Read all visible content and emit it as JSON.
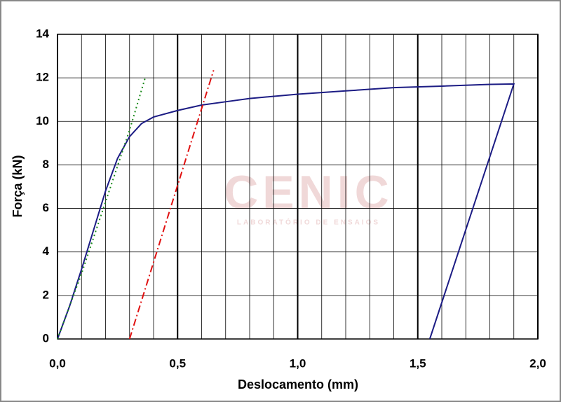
{
  "chart_data": {
    "type": "line",
    "xlabel": "Deslocamento (mm)",
    "ylabel": "Força (kN)",
    "watermark": {
      "logo": "CENIC",
      "subtitle": "LABORATÓRIO DE ENSAIOS"
    },
    "xlim": [
      0,
      2.0
    ],
    "ylim": [
      0,
      14
    ],
    "xticks": [
      {
        "value": 0,
        "label": "0,0"
      },
      {
        "value": 0.5,
        "label": "0,5"
      },
      {
        "value": 1.0,
        "label": "1,0"
      },
      {
        "value": 1.5,
        "label": "1,5"
      },
      {
        "value": 2.0,
        "label": "2,0"
      }
    ],
    "xminor": [
      0.1,
      0.2,
      0.3,
      0.4,
      0.6,
      0.7,
      0.8,
      0.9,
      1.1,
      1.2,
      1.3,
      1.4,
      1.6,
      1.7,
      1.8,
      1.9
    ],
    "yticks": [
      0,
      2,
      4,
      6,
      8,
      10,
      12,
      14
    ],
    "grid": true,
    "series": [
      {
        "color": "#1c1c84",
        "style": "solid",
        "x": [
          0,
          0.05,
          0.1,
          0.15,
          0.2,
          0.25,
          0.3,
          0.35,
          0.4,
          0.5,
          0.6,
          0.7,
          0.8,
          1.0,
          1.2,
          1.4,
          1.6,
          1.8,
          1.9,
          1.55
        ],
        "values": [
          0,
          1.5,
          3.2,
          5.0,
          6.8,
          8.3,
          9.3,
          9.9,
          10.2,
          10.5,
          10.75,
          10.9,
          11.05,
          11.25,
          11.4,
          11.55,
          11.62,
          11.7,
          11.72,
          0
        ]
      },
      {
        "color": "#1a8a1a",
        "style": "dotted",
        "x": [
          0,
          0.1,
          0.2,
          0.3,
          0.365
        ],
        "values": [
          0,
          3.0,
          6.3,
          9.6,
          12
        ]
      },
      {
        "color": "#e01010",
        "style": "dashdot",
        "x": [
          0.3,
          0.65
        ],
        "values": [
          0,
          12.35
        ]
      }
    ]
  }
}
